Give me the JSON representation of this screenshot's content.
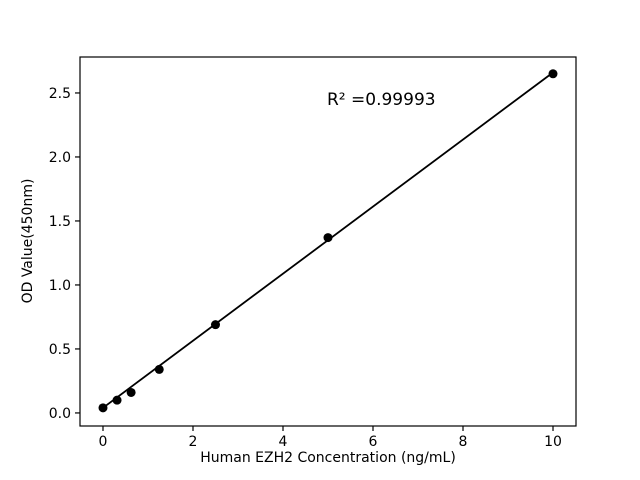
{
  "chart_data": {
    "type": "scatter",
    "xlabel": "Human EZH2 Concentration (ng/mL)",
    "ylabel": "OD Value(450nm)",
    "annotation": "R² =0.99993",
    "r_squared": 0.99993,
    "x": [
      0,
      0.3125,
      0.625,
      1.25,
      2.5,
      5,
      10
    ],
    "y": [
      0.04,
      0.1,
      0.16,
      0.34,
      0.69,
      1.37,
      2.65
    ],
    "trendline": {
      "x": [
        0,
        10
      ],
      "y": [
        0.04,
        2.66
      ]
    },
    "xticks": [
      0,
      2,
      4,
      6,
      8,
      10
    ],
    "xtick_labels": [
      "0",
      "2",
      "4",
      "6",
      "8",
      "10"
    ],
    "yticks": [
      0,
      0.5,
      1.0,
      1.5,
      2.0,
      2.5
    ],
    "ytick_labels": [
      "0.0",
      "0.5",
      "1.0",
      "1.5",
      "2.0",
      "2.5"
    ],
    "xlim": [
      -0.511,
      10.511
    ],
    "ylim": [
      -0.102,
      2.781
    ],
    "grid": false,
    "legend": false,
    "marker_style": "circle",
    "marker_color": "#000000",
    "line_color": "#000000",
    "frame_color": "#000000",
    "background": "#ffffff"
  }
}
